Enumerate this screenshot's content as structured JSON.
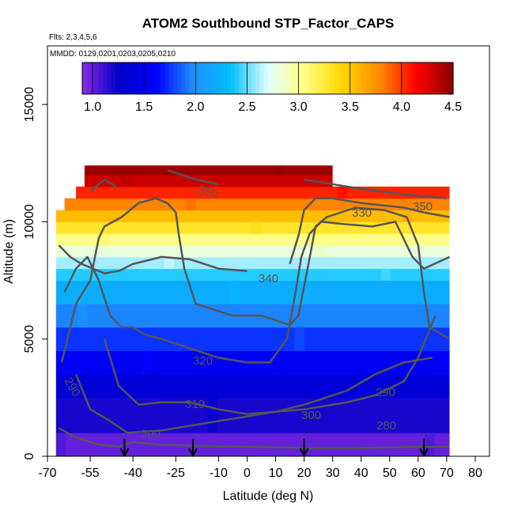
{
  "chart_data": {
    "type": "heatmap",
    "title": "ATOM2 Southbound STP_Factor_CAPS",
    "subtitle_flights": "Flts: 2,3,4,5,6",
    "subtitle_dates": "MMDD: 0129,0201,0203,0205,0210",
    "xlabel": "Latitude (deg N)",
    "ylabel": "Altitude (m)",
    "xlim": [
      -70,
      85
    ],
    "ylim": [
      0,
      17500
    ],
    "x_ticks": [
      -70,
      -55,
      -40,
      -25,
      -10,
      0,
      10,
      20,
      30,
      40,
      50,
      60,
      70,
      80
    ],
    "y_ticks": [
      0,
      5000,
      10000,
      15000
    ],
    "colorbar": {
      "range": [
        0.9,
        4.5
      ],
      "ticks": [
        1.0,
        1.5,
        2.0,
        2.5,
        3.0,
        3.5,
        4.0,
        4.5
      ],
      "colors": [
        "#8a2be2",
        "#0000c8",
        "#0000ff",
        "#1e90ff",
        "#00bfff",
        "#e0ffff",
        "#ffff80",
        "#ffd700",
        "#ff8c00",
        "#ff0000",
        "#8b0000"
      ]
    },
    "data_extent": {
      "lat_range": [
        -67,
        71
      ],
      "altitude_bands": [
        {
          "alt": [
            0,
            1000
          ],
          "value": 1.0
        },
        {
          "alt": [
            1000,
            2500
          ],
          "value": 1.2
        },
        {
          "alt": [
            2500,
            3500
          ],
          "value": 1.35
        },
        {
          "alt": [
            3500,
            4500
          ],
          "value": 1.55
        },
        {
          "alt": [
            4500,
            5500
          ],
          "value": 1.75
        },
        {
          "alt": [
            5500,
            6500
          ],
          "value": 1.95
        },
        {
          "alt": [
            6500,
            7500
          ],
          "value": 2.2
        },
        {
          "alt": [
            7500,
            8000
          ],
          "value": 2.4
        },
        {
          "alt": [
            8000,
            8500
          ],
          "value": 2.6
        },
        {
          "alt": [
            8500,
            9000
          ],
          "value": 2.8
        },
        {
          "alt": [
            9000,
            9500
          ],
          "value": 3.05
        },
        {
          "alt": [
            9500,
            10000
          ],
          "value": 3.3
        },
        {
          "alt": [
            10000,
            10500
          ],
          "value": 3.55
        },
        {
          "alt": [
            10500,
            11000
          ],
          "value": 3.8
        },
        {
          "alt": [
            11000,
            11500
          ],
          "value": 4.05
        },
        {
          "alt": [
            11500,
            12000
          ],
          "value": 4.3
        },
        {
          "alt": [
            12000,
            12400
          ],
          "value": 4.45
        }
      ]
    },
    "contour_labels": [
      "350",
      "330",
      "350",
      "340",
      "320",
      "290",
      "310",
      "300",
      "290",
      "300",
      "280"
    ],
    "arrow_latitudes": [
      -43,
      -19,
      20,
      62
    ]
  }
}
